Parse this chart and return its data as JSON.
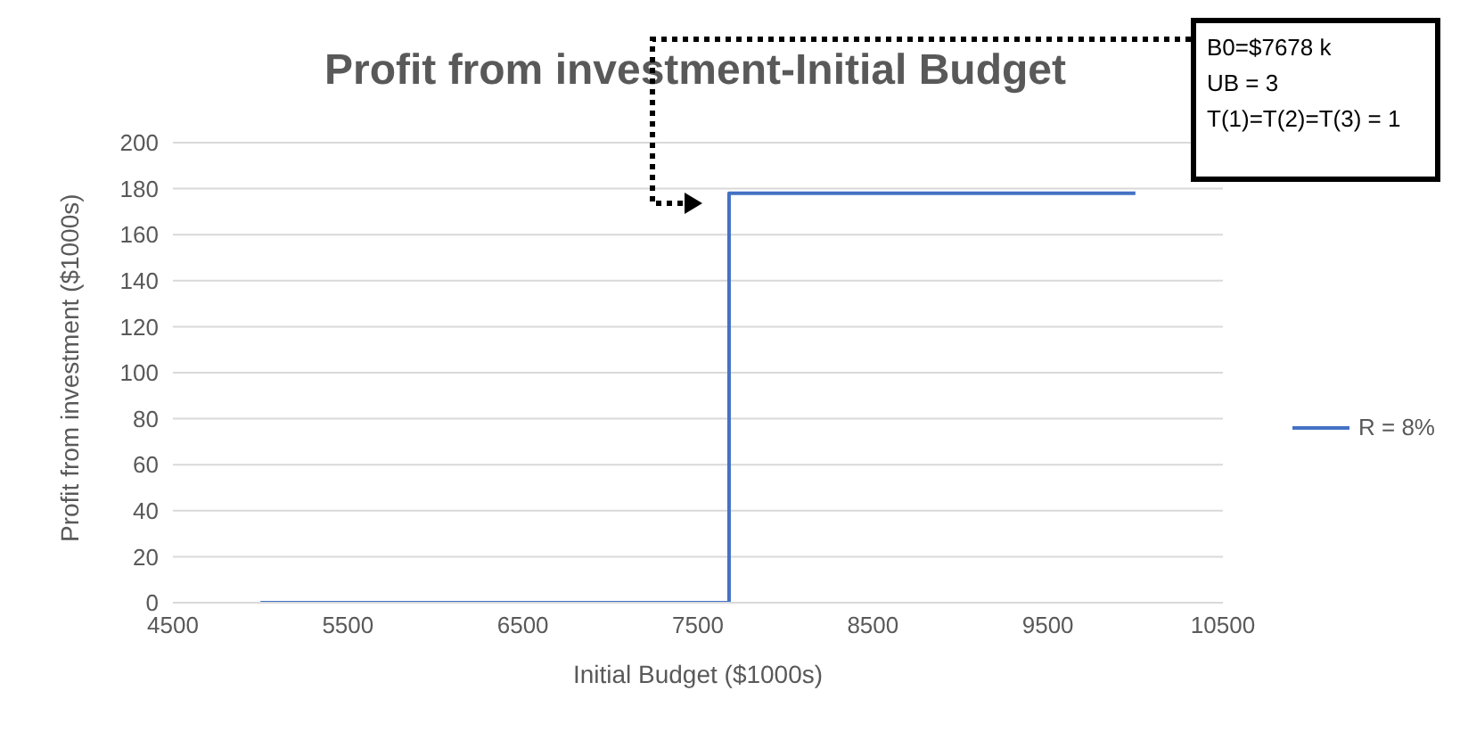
{
  "chart_data": {
    "type": "step",
    "title": "Profit from investment-Initial Budget",
    "xlabel": "Initial Budget ($1000s)",
    "ylabel": "Profit from investment ($1000s)",
    "series": [
      {
        "name": "R = 8%",
        "color": "#4472c4",
        "x": [
          5000,
          7678,
          10000
        ],
        "values": [
          0,
          178,
          178
        ]
      }
    ],
    "xlim": [
      4500,
      10500
    ],
    "xticks": [
      4500,
      5500,
      6500,
      7500,
      8500,
      9500,
      10500
    ],
    "ylim": [
      0,
      200
    ],
    "yticks": [
      0,
      20,
      40,
      60,
      80,
      100,
      120,
      140,
      160,
      180,
      200
    ],
    "grid": "y",
    "legend": "right",
    "marker": "none",
    "line_style": "solid",
    "annotations": [
      "B0=$7678 k\nUB = 3\nT(1)=T(2)=T(3) = 1"
    ]
  }
}
